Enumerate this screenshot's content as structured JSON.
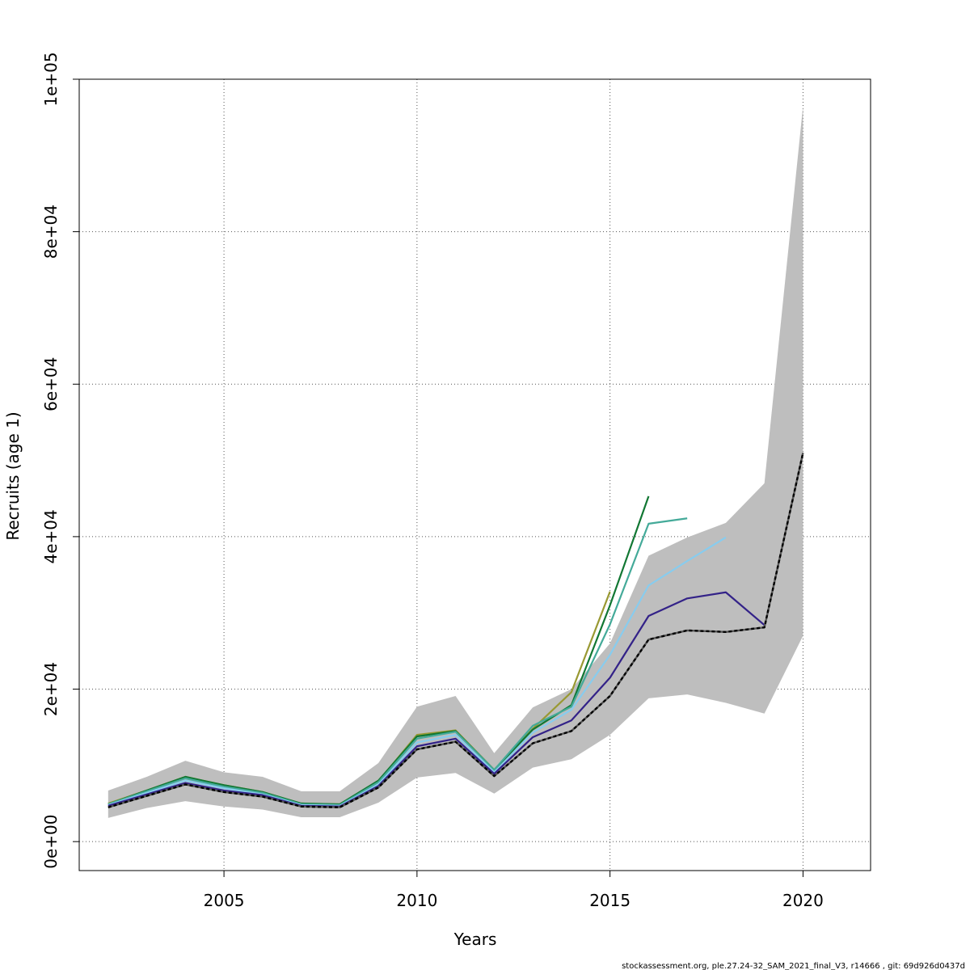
{
  "footnote": "stockassessment.org, ple.27.24-32_SAM_2021_final_V3, r14666 , git: 69d926d0437d",
  "chart_data": {
    "type": "line",
    "xlabel": "Years",
    "ylabel": "Recruits (age 1)",
    "xlim": [
      2001.25,
      2021.75
    ],
    "ylim": [
      -3800,
      100000
    ],
    "x_ticks": [
      2005,
      2010,
      2015,
      2020
    ],
    "x_tick_labels": [
      "2005",
      "2010",
      "2015",
      "2020"
    ],
    "y_ticks": [
      0,
      20000,
      40000,
      60000,
      80000,
      100000
    ],
    "y_tick_labels": [
      "0e+00",
      "2e+04",
      "4e+04",
      "6e+04",
      "8e+04",
      "1e+05"
    ],
    "grid": true,
    "band_color": "#bebebe",
    "band": {
      "x": [
        2002,
        2003,
        2004,
        2005,
        2006,
        2007,
        2008,
        2009,
        2010,
        2011,
        2012,
        2013,
        2014,
        2015,
        2016,
        2017,
        2018,
        2019,
        2020
      ],
      "lower": [
        3100,
        4400,
        5300,
        4600,
        4200,
        3200,
        3200,
        5100,
        8400,
        9000,
        6300,
        9700,
        10800,
        14000,
        18800,
        19300,
        18200,
        16800,
        27000
      ],
      "upper": [
        6700,
        8500,
        10600,
        9100,
        8500,
        6600,
        6600,
        10300,
        17700,
        19100,
        11600,
        17600,
        20000,
        26000,
        37500,
        39900,
        41800,
        47000,
        96500
      ]
    },
    "series": [
      {
        "color": "#999933",
        "x": [
          2002,
          2003,
          2004,
          2005,
          2006,
          2007,
          2008,
          2009,
          2010,
          2011,
          2012,
          2013,
          2014,
          2015
        ],
        "values": [
          5000,
          6700,
          8500,
          7400,
          6500,
          5000,
          4900,
          7900,
          14000,
          14600,
          9400,
          14800,
          19600,
          32800
        ]
      },
      {
        "color": "#117733",
        "x": [
          2002,
          2003,
          2004,
          2005,
          2006,
          2007,
          2008,
          2009,
          2010,
          2011,
          2012,
          2013,
          2014,
          2015,
          2016
        ],
        "values": [
          4900,
          6700,
          8500,
          7400,
          6500,
          5000,
          4900,
          8000,
          13800,
          14500,
          9400,
          14700,
          17900,
          31000,
          45300
        ]
      },
      {
        "color": "#44AA99",
        "x": [
          2002,
          2003,
          2004,
          2005,
          2006,
          2007,
          2008,
          2009,
          2010,
          2011,
          2012,
          2013,
          2014,
          2015,
          2016,
          2017
        ],
        "values": [
          4900,
          6600,
          8300,
          7200,
          6400,
          4900,
          4800,
          7800,
          13500,
          14400,
          9400,
          15200,
          17700,
          28500,
          41700,
          42400
        ]
      },
      {
        "color": "#88CCEE",
        "x": [
          2002,
          2003,
          2004,
          2005,
          2006,
          2007,
          2008,
          2009,
          2010,
          2011,
          2012,
          2013,
          2014,
          2015,
          2016,
          2017,
          2018
        ],
        "values": [
          4800,
          6400,
          8000,
          7000,
          6200,
          4800,
          4700,
          7500,
          13000,
          14000,
          9100,
          14300,
          17300,
          24500,
          33600,
          36800,
          39900
        ]
      },
      {
        "color": "#332288",
        "x": [
          2002,
          2003,
          2004,
          2005,
          2006,
          2007,
          2008,
          2009,
          2010,
          2011,
          2012,
          2013,
          2014,
          2015,
          2016,
          2017,
          2018,
          2019
        ],
        "values": [
          4700,
          6200,
          7700,
          6700,
          6100,
          4700,
          4600,
          7300,
          12500,
          13500,
          8900,
          13700,
          15900,
          21500,
          29600,
          31900,
          32700,
          28400
        ]
      },
      {
        "color": "#000000",
        "dashed": true,
        "x": [
          2002,
          2003,
          2004,
          2005,
          2006,
          2007,
          2008,
          2009,
          2010,
          2011,
          2012,
          2013,
          2014,
          2015,
          2016,
          2017,
          2018,
          2019,
          2020
        ],
        "values": [
          4500,
          6000,
          7500,
          6500,
          5900,
          4600,
          4500,
          7100,
          12100,
          13100,
          8600,
          12900,
          14500,
          19100,
          26500,
          27700,
          27500,
          28100,
          51000
        ]
      }
    ]
  }
}
